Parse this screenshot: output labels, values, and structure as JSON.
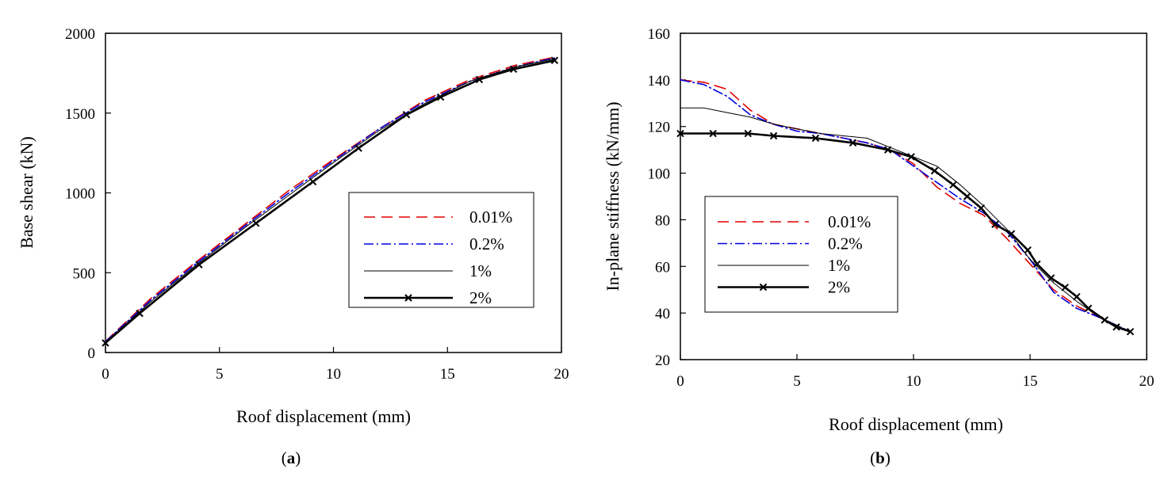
{
  "chart_data": [
    {
      "id": "a",
      "type": "line",
      "caption_parts": [
        "(",
        "a",
        ")"
      ],
      "xlabel": "Roof displacement (mm)",
      "ylabel": "Base shear (kN)",
      "xlim": [
        0,
        20
      ],
      "ylim": [
        0,
        2000
      ],
      "xticks": [
        0,
        5,
        10,
        15,
        20
      ],
      "yticks": [
        0,
        500,
        1000,
        1500,
        2000
      ],
      "legend": {
        "placement": "center-right",
        "entries": [
          "0.01%",
          "0.2%",
          "1%",
          "2%"
        ]
      },
      "series": [
        {
          "name": "0.01%",
          "color": "#e00000",
          "style": "dashed",
          "x": [
            0,
            2,
            4,
            6,
            8,
            10,
            12,
            14,
            16,
            18,
            19.7
          ],
          "y": [
            70,
            340,
            570,
            790,
            1010,
            1210,
            1400,
            1580,
            1710,
            1800,
            1850
          ]
        },
        {
          "name": "0.2%",
          "color": "#0000e0",
          "style": "dashdot",
          "x": [
            0,
            2,
            4,
            6,
            8,
            10,
            12,
            14,
            16,
            18,
            19.7
          ],
          "y": [
            68,
            330,
            560,
            780,
            995,
            1200,
            1400,
            1570,
            1700,
            1790,
            1845
          ]
        },
        {
          "name": "1%",
          "color": "#000000",
          "style": "thin",
          "x": [
            0,
            2,
            4,
            6,
            8,
            10,
            12,
            14,
            16,
            18,
            19.7
          ],
          "y": [
            65,
            320,
            550,
            770,
            980,
            1190,
            1390,
            1560,
            1700,
            1790,
            1840
          ]
        },
        {
          "name": "2%",
          "color": "#000000",
          "style": "thick-marker",
          "x": [
            0,
            1.5,
            4.1,
            6.6,
            9.1,
            11.1,
            13.2,
            14.7,
            16.4,
            17.9,
            19.7
          ],
          "y": [
            60,
            245,
            550,
            810,
            1070,
            1280,
            1490,
            1600,
            1710,
            1775,
            1830
          ]
        }
      ]
    },
    {
      "id": "b",
      "type": "line",
      "caption_parts": [
        "(",
        "b",
        ")"
      ],
      "xlabel": "Roof displacement (mm)",
      "ylabel": "In-plane stiffness (kN/mm)",
      "xlim": [
        0,
        20
      ],
      "ylim": [
        20,
        160
      ],
      "xticks": [
        0,
        5,
        10,
        15,
        20
      ],
      "yticks": [
        20,
        40,
        60,
        80,
        100,
        120,
        140,
        160
      ],
      "legend": {
        "placement": "center-left",
        "entries": [
          "0.01%",
          "0.2%",
          "1%",
          "2%"
        ]
      },
      "series": [
        {
          "name": "0.01%",
          "color": "#e00000",
          "style": "dashed",
          "x": [
            0,
            1,
            2,
            3,
            4,
            5,
            6,
            7,
            8,
            9,
            10,
            11,
            12,
            13,
            14,
            15,
            16,
            17,
            18,
            19.3
          ],
          "y": [
            140,
            139,
            136,
            127,
            121,
            119,
            117,
            115,
            113,
            110,
            104,
            94,
            87,
            82,
            72,
            61,
            50,
            43,
            38,
            32
          ]
        },
        {
          "name": "0.2%",
          "color": "#0000e0",
          "style": "dashdot",
          "x": [
            0,
            1,
            2,
            3,
            4,
            5,
            6,
            7,
            8,
            9,
            10,
            11,
            12,
            13,
            14,
            15,
            16,
            17,
            18,
            19.3
          ],
          "y": [
            140,
            138,
            133,
            125,
            121,
            118,
            117,
            115,
            113,
            110,
            103,
            96,
            89,
            83,
            75,
            63,
            49,
            42,
            38,
            32
          ]
        },
        {
          "name": "1%",
          "color": "#000000",
          "style": "thin",
          "x": [
            0,
            1,
            2,
            3,
            4,
            5,
            6,
            7,
            8,
            9,
            10,
            11,
            12,
            13,
            14,
            15,
            16,
            17,
            18,
            19.3
          ],
          "y": [
            128,
            128,
            126,
            124,
            121,
            119,
            117,
            116,
            115,
            111,
            107,
            103,
            95,
            86,
            76,
            63,
            53,
            45,
            38,
            32
          ]
        },
        {
          "name": "2%",
          "color": "#000000",
          "style": "thick-marker",
          "x": [
            0,
            1.4,
            2.9,
            4.0,
            5.8,
            7.4,
            8.9,
            9.9,
            10.9,
            11.7,
            12.3,
            12.9,
            13.5,
            14.2,
            14.9,
            15.3,
            15.9,
            16.5,
            17.0,
            17.5,
            18.2,
            18.7,
            19.3
          ],
          "y": [
            117,
            117,
            117,
            116,
            115,
            113,
            110,
            107,
            101,
            95,
            90,
            85,
            78,
            74,
            67,
            61,
            55,
            51,
            47,
            42,
            37,
            34,
            32
          ]
        }
      ]
    }
  ]
}
